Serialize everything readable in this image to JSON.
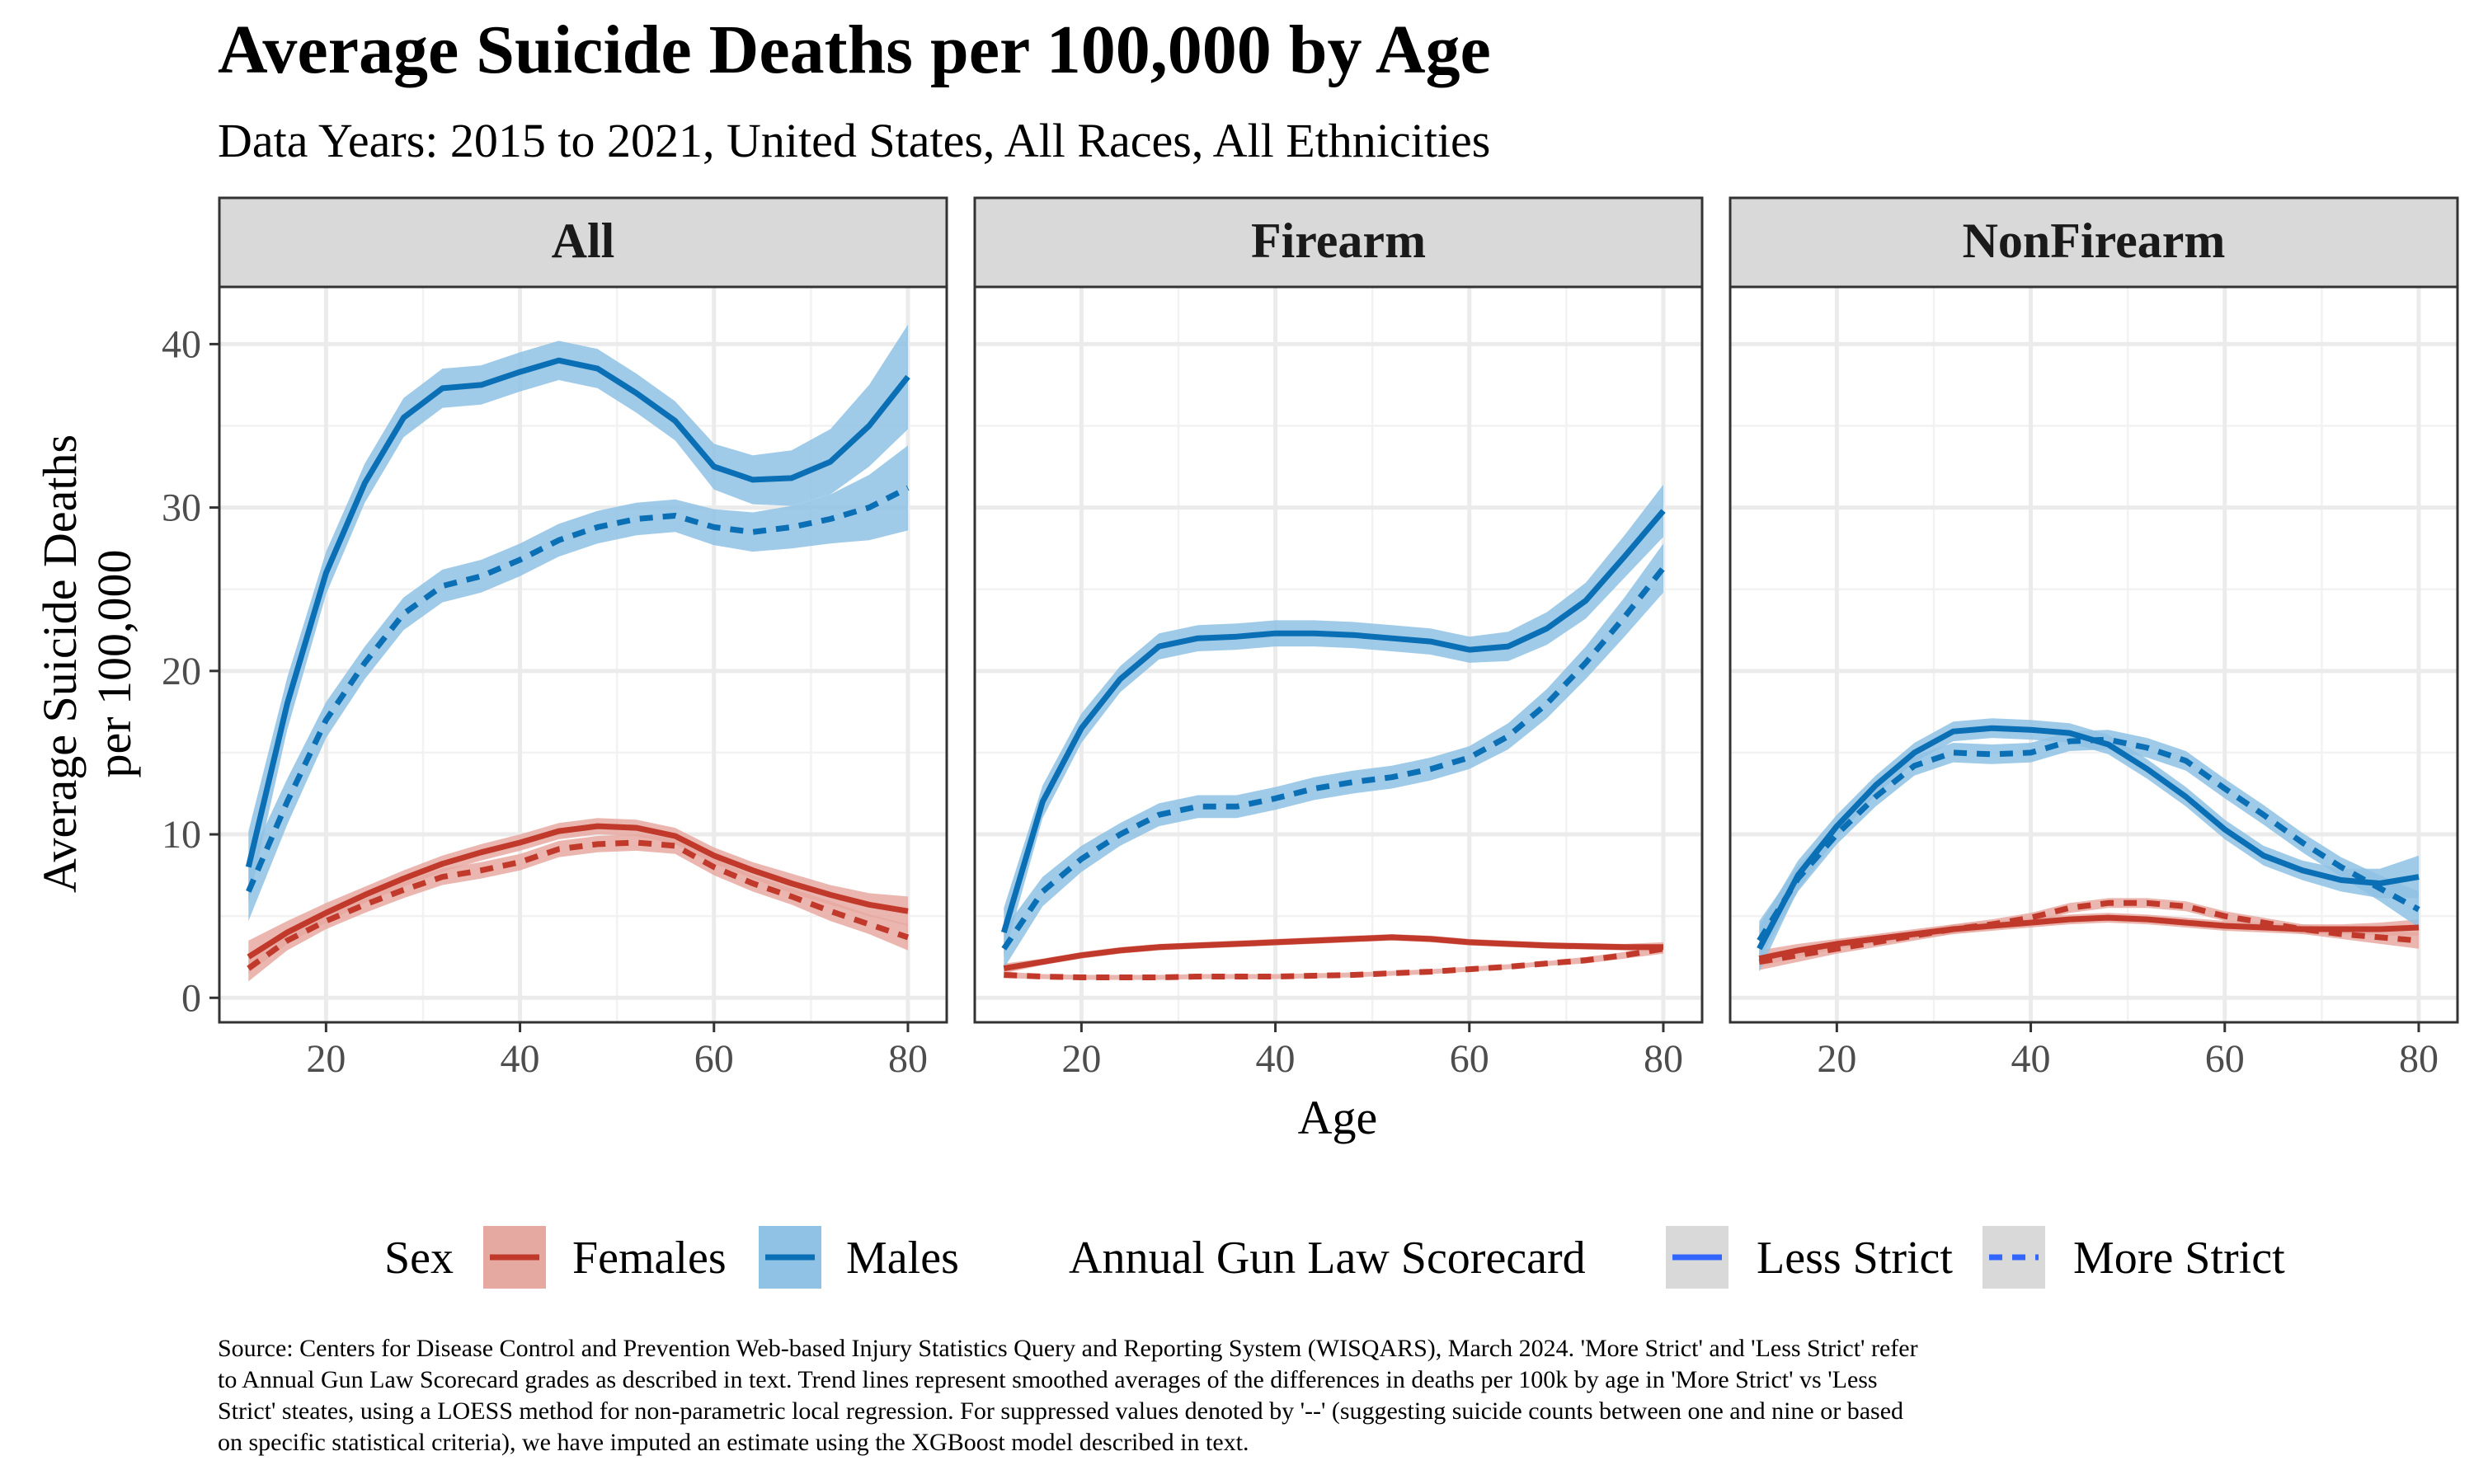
{
  "title": "Average Suicide Deaths per 100,000 by Age",
  "subtitle": "Data Years: 2015 to 2021, United States, All Races, All Ethnicities",
  "caption": [
    "Source: Centers for Disease Control and Prevention Web-based Injury Statistics Query and Reporting System (WISQARS), March 2024. 'More Strict' and 'Less Strict' refer",
    "to Annual Gun Law Scorecard grades as described in text. Trend lines represent smoothed averages of the differences in deaths per 100k by age in 'More Strict' vs 'Less",
    "Strict' steates, using a LOESS method for non-parametric local regression. For suppressed values denoted by '--' (suggesting suicide counts between one and nine or based",
    "on specific statistical criteria), we have imputed an estimate using the XGBoost model described in text."
  ],
  "colors": {
    "females": "#c0392b",
    "females_band": "#e6a9a1",
    "males": "#0b6fb5",
    "males_band": "#8fc2e4",
    "strip_bg": "#d9d9d9",
    "grid": "#ebebeb",
    "legend_line": "#3366ff"
  },
  "legend": {
    "sex_title": "Sex",
    "sex_items": [
      "Females",
      "Males"
    ],
    "law_title": "Annual Gun Law Scorecard",
    "law_items": [
      "Less Strict",
      "More Strict"
    ]
  },
  "chart_data": {
    "type": "line",
    "xlabel": "Age",
    "ylabel_lines": [
      "Average Suicide Deaths",
      "per 100,000"
    ],
    "xlim": [
      9,
      84
    ],
    "ylim": [
      -1.5,
      43.5
    ],
    "xticks": [
      20,
      40,
      60,
      80
    ],
    "yticks": [
      0,
      10,
      20,
      30,
      40
    ],
    "x": [
      12,
      16,
      20,
      24,
      28,
      32,
      36,
      40,
      44,
      48,
      52,
      56,
      60,
      64,
      68,
      72,
      76,
      80
    ],
    "panels": [
      {
        "name": "All",
        "series": [
          {
            "sex": "Males",
            "law": "Less Strict",
            "values": [
              8,
              18,
              26,
              31.5,
              35.5,
              37.3,
              37.5,
              38.3,
              39,
              38.5,
              37,
              35.3,
              32.5,
              31.7,
              31.8,
              32.8,
              35,
              38
            ],
            "band": [
              2.2,
              1.6,
              1.3,
              1.2,
              1.2,
              1.2,
              1.2,
              1.2,
              1.2,
              1.2,
              1.2,
              1.2,
              1.4,
              1.5,
              1.7,
              2.0,
              2.5,
              3.2
            ]
          },
          {
            "sex": "Males",
            "law": "More Strict",
            "values": [
              6.5,
              12,
              17,
              20.5,
              23.5,
              25.2,
              25.8,
              26.8,
              28,
              28.8,
              29.3,
              29.5,
              28.8,
              28.5,
              28.8,
              29.3,
              30,
              31.2
            ],
            "band": [
              1.8,
              1.4,
              1.1,
              1.0,
              1.0,
              1.0,
              1.0,
              1.0,
              1.0,
              1.0,
              1.0,
              1.0,
              1.1,
              1.2,
              1.3,
              1.5,
              2.0,
              2.6
            ]
          },
          {
            "sex": "Females",
            "law": "Less Strict",
            "values": [
              2.5,
              4,
              5.2,
              6.3,
              7.3,
              8.2,
              8.9,
              9.5,
              10.2,
              10.5,
              10.4,
              9.9,
              8.7,
              7.8,
              7,
              6.3,
              5.7,
              5.3
            ],
            "band": [
              1.0,
              0.7,
              0.6,
              0.5,
              0.5,
              0.5,
              0.5,
              0.5,
              0.5,
              0.5,
              0.5,
              0.5,
              0.5,
              0.5,
              0.6,
              0.6,
              0.7,
              0.9
            ]
          },
          {
            "sex": "Females",
            "law": "More Strict",
            "values": [
              1.8,
              3.5,
              4.7,
              5.7,
              6.6,
              7.4,
              7.8,
              8.3,
              9.1,
              9.4,
              9.5,
              9.3,
              8,
              7,
              6.2,
              5.3,
              4.5,
              3.7
            ],
            "band": [
              0.8,
              0.6,
              0.5,
              0.5,
              0.5,
              0.5,
              0.5,
              0.5,
              0.5,
              0.5,
              0.5,
              0.5,
              0.5,
              0.5,
              0.5,
              0.6,
              0.6,
              0.8
            ]
          }
        ]
      },
      {
        "name": "Firearm",
        "series": [
          {
            "sex": "Males",
            "law": "Less Strict",
            "values": [
              4,
              12,
              16.5,
              19.5,
              21.5,
              22,
              22.1,
              22.3,
              22.3,
              22.2,
              22,
              21.8,
              21.3,
              21.5,
              22.6,
              24.3,
              27,
              29.8
            ],
            "band": [
              1.5,
              1.0,
              0.9,
              0.8,
              0.8,
              0.8,
              0.8,
              0.8,
              0.8,
              0.8,
              0.8,
              0.8,
              0.8,
              0.9,
              1.0,
              1.1,
              1.3,
              1.6
            ]
          },
          {
            "sex": "Males",
            "law": "More Strict",
            "values": [
              3,
              6.5,
              8.5,
              10,
              11.2,
              11.7,
              11.7,
              12.2,
              12.8,
              13.2,
              13.5,
              14,
              14.7,
              16,
              18,
              20.5,
              23.3,
              26.3
            ],
            "band": [
              1.2,
              0.9,
              0.8,
              0.7,
              0.7,
              0.7,
              0.7,
              0.7,
              0.7,
              0.7,
              0.7,
              0.7,
              0.7,
              0.8,
              0.9,
              1.0,
              1.2,
              1.5
            ]
          },
          {
            "sex": "Females",
            "law": "Less Strict",
            "values": [
              1.8,
              2.2,
              2.6,
              2.9,
              3.1,
              3.2,
              3.3,
              3.4,
              3.5,
              3.6,
              3.7,
              3.6,
              3.4,
              3.3,
              3.2,
              3.15,
              3.1,
              3.1
            ],
            "band": [
              0.3,
              0.2,
              0.2,
              0.2,
              0.2,
              0.2,
              0.2,
              0.2,
              0.2,
              0.2,
              0.2,
              0.2,
              0.2,
              0.2,
              0.2,
              0.2,
              0.2,
              0.3
            ]
          },
          {
            "sex": "Females",
            "law": "More Strict",
            "values": [
              1.4,
              1.3,
              1.25,
              1.25,
              1.25,
              1.3,
              1.3,
              1.3,
              1.35,
              1.4,
              1.5,
              1.6,
              1.75,
              1.9,
              2.1,
              2.3,
              2.6,
              3
            ],
            "band": [
              0.2,
              0.15,
              0.15,
              0.15,
              0.15,
              0.15,
              0.15,
              0.15,
              0.15,
              0.15,
              0.15,
              0.15,
              0.15,
              0.15,
              0.15,
              0.2,
              0.2,
              0.3
            ]
          }
        ]
      },
      {
        "name": "NonFirearm",
        "series": [
          {
            "sex": "Males",
            "law": "Less Strict",
            "values": [
              3,
              7.5,
              10.5,
              13,
              15,
              16.3,
              16.5,
              16.4,
              16.2,
              15.5,
              14,
              12.3,
              10.3,
              8.7,
              7.8,
              7.2,
              7,
              7.4
            ],
            "band": [
              1.4,
              0.9,
              0.7,
              0.6,
              0.6,
              0.6,
              0.6,
              0.6,
              0.6,
              0.6,
              0.6,
              0.6,
              0.6,
              0.6,
              0.6,
              0.7,
              0.9,
              1.3
            ]
          },
          {
            "sex": "Males",
            "law": "More Strict",
            "values": [
              3.5,
              7.3,
              10,
              12.3,
              14.2,
              15,
              14.9,
              15,
              15.7,
              15.8,
              15.3,
              14.5,
              12.8,
              11.2,
              9.5,
              8,
              6.7,
              5.4
            ],
            "band": [
              1.2,
              0.8,
              0.6,
              0.6,
              0.6,
              0.6,
              0.6,
              0.6,
              0.6,
              0.6,
              0.6,
              0.6,
              0.6,
              0.6,
              0.6,
              0.6,
              0.8,
              1.1
            ]
          },
          {
            "sex": "Females",
            "law": "Less Strict",
            "values": [
              2.4,
              2.9,
              3.3,
              3.6,
              3.9,
              4.2,
              4.4,
              4.6,
              4.8,
              4.9,
              4.8,
              4.6,
              4.4,
              4.3,
              4.2,
              4.2,
              4.2,
              4.3
            ],
            "band": [
              0.5,
              0.4,
              0.3,
              0.3,
              0.3,
              0.3,
              0.3,
              0.3,
              0.3,
              0.3,
              0.3,
              0.3,
              0.3,
              0.3,
              0.3,
              0.3,
              0.4,
              0.5
            ]
          },
          {
            "sex": "Females",
            "law": "More Strict",
            "values": [
              2.2,
              2.6,
              3,
              3.4,
              3.8,
              4.2,
              4.5,
              4.9,
              5.5,
              5.8,
              5.8,
              5.6,
              5,
              4.6,
              4.2,
              3.9,
              3.7,
              3.5
            ],
            "band": [
              0.5,
              0.4,
              0.3,
              0.3,
              0.3,
              0.3,
              0.3,
              0.3,
              0.3,
              0.3,
              0.3,
              0.3,
              0.3,
              0.3,
              0.3,
              0.3,
              0.4,
              0.5
            ]
          }
        ]
      }
    ]
  }
}
